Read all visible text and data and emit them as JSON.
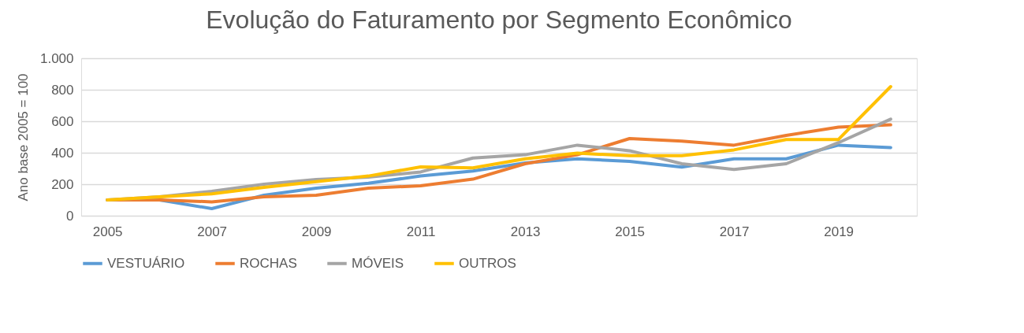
{
  "chart_data": {
    "type": "line",
    "title": "Evolução do Faturamento por Segmento Econômico",
    "ylabel": "Ano base 2005 = 100",
    "x": [
      2005,
      2006,
      2007,
      2008,
      2009,
      2010,
      2011,
      2012,
      2013,
      2014,
      2015,
      2016,
      2017,
      2018,
      2019,
      2020
    ],
    "xlim": [
      2004.5,
      2020.5
    ],
    "xticks": [
      2005,
      2007,
      2009,
      2011,
      2013,
      2015,
      2017,
      2019
    ],
    "ylim": [
      0,
      1000
    ],
    "yticks": [
      {
        "value": 0,
        "label": "0"
      },
      {
        "value": 200,
        "label": "200"
      },
      {
        "value": 400,
        "label": "400"
      },
      {
        "value": 600,
        "label": "600"
      },
      {
        "value": 800,
        "label": "800"
      },
      {
        "value": 1000,
        "label": "1.000"
      }
    ],
    "grid": "y",
    "legend": "bottom",
    "marker": "none",
    "line_style": "solid",
    "series": [
      {
        "name": "VESTUÁRIO",
        "color": "#5b9bd5",
        "values": [
          100,
          100,
          45,
          130,
          175,
          206,
          252,
          284,
          335,
          361,
          345,
          309,
          361,
          361,
          448,
          433
        ]
      },
      {
        "name": "ROCHAS",
        "color": "#ed7d31",
        "values": [
          100,
          100,
          88,
          120,
          130,
          175,
          190,
          232,
          330,
          387,
          490,
          474,
          448,
          510,
          562,
          577
        ]
      },
      {
        "name": "MÓVEIS",
        "color": "#a5a5a5",
        "values": [
          100,
          120,
          155,
          200,
          230,
          245,
          278,
          366,
          387,
          448,
          413,
          330,
          294,
          330,
          464,
          613
        ]
      },
      {
        "name": "OUTROS",
        "color": "#ffc000",
        "values": [
          100,
          120,
          139,
          180,
          216,
          252,
          310,
          304,
          361,
          397,
          381,
          381,
          418,
          484,
          484,
          820
        ]
      }
    ]
  }
}
